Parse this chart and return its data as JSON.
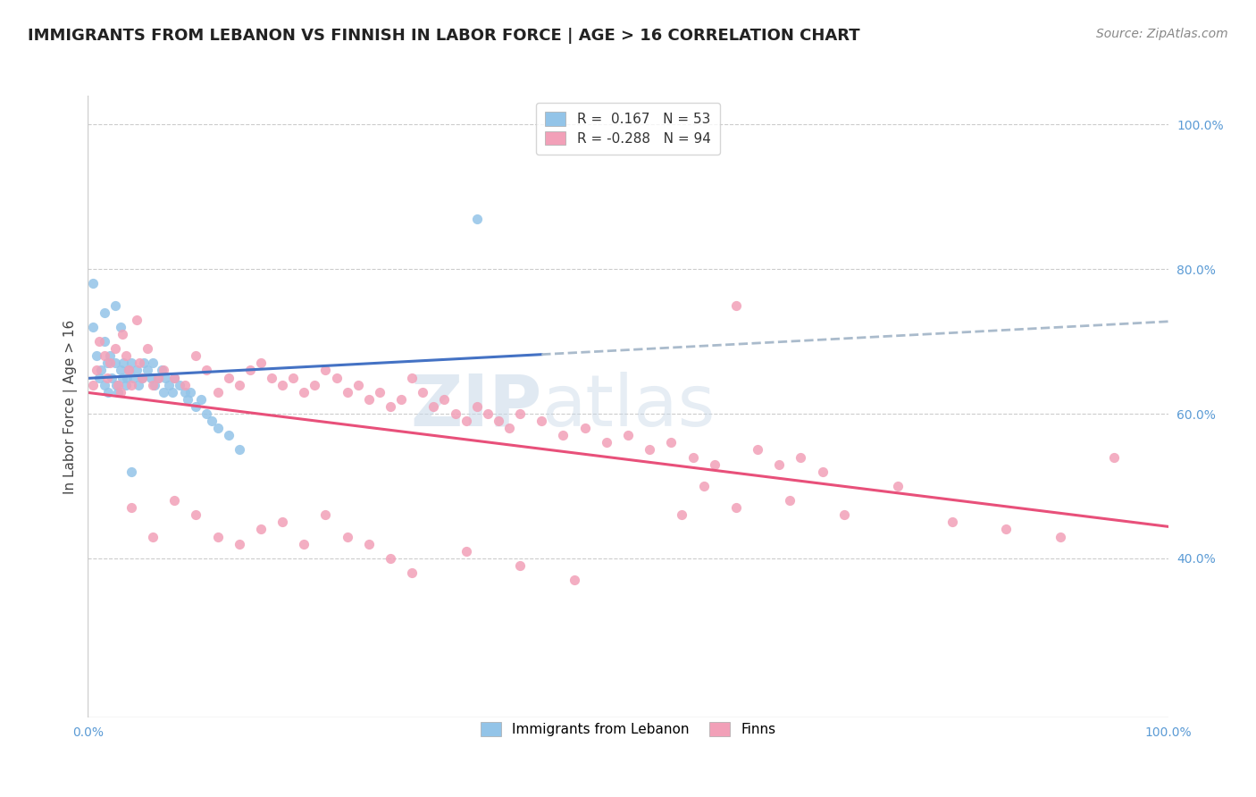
{
  "title": "IMMIGRANTS FROM LEBANON VS FINNISH IN LABOR FORCE | AGE > 16 CORRELATION CHART",
  "source": "Source: ZipAtlas.com",
  "ylabel": "In Labor Force | Age > 16",
  "xlim": [
    0.0,
    1.0
  ],
  "ylim": [
    0.18,
    1.04
  ],
  "y_ticks_right": [
    1.0,
    0.8,
    0.6,
    0.4
  ],
  "y_tick_labels_right": [
    "100.0%",
    "80.0%",
    "60.0%",
    "40.0%"
  ],
  "legend_label1": "Immigrants from Lebanon",
  "legend_label2": "Finns",
  "R_lebanon": 0.167,
  "N_lebanon": 53,
  "R_finns": -0.288,
  "N_finns": 94,
  "color_lebanon": "#93C4E8",
  "color_finns": "#F2A0B8",
  "color_line_lebanon": "#4472C4",
  "color_line_finns": "#E8507A",
  "color_dashed": "#AABBCC",
  "background_color": "#FFFFFF",
  "title_fontsize": 13,
  "source_fontsize": 10,
  "watermark_text": "ZIP​atlas",
  "lebanon_points_x": [
    0.005,
    0.008,
    0.01,
    0.012,
    0.015,
    0.015,
    0.018,
    0.019,
    0.02,
    0.022,
    0.025,
    0.026,
    0.028,
    0.03,
    0.032,
    0.033,
    0.035,
    0.036,
    0.038,
    0.04,
    0.042,
    0.045,
    0.047,
    0.05,
    0.052,
    0.055,
    0.058,
    0.06,
    0.062,
    0.065,
    0.068,
    0.07,
    0.072,
    0.075,
    0.078,
    0.08,
    0.085,
    0.09,
    0.092,
    0.095,
    0.1,
    0.105,
    0.11,
    0.115,
    0.12,
    0.13,
    0.14,
    0.015,
    0.025,
    0.03,
    0.04,
    0.36,
    0.005
  ],
  "lebanon_points_y": [
    0.72,
    0.68,
    0.65,
    0.66,
    0.7,
    0.64,
    0.67,
    0.63,
    0.68,
    0.65,
    0.67,
    0.64,
    0.63,
    0.66,
    0.65,
    0.67,
    0.64,
    0.65,
    0.66,
    0.67,
    0.65,
    0.66,
    0.64,
    0.65,
    0.67,
    0.66,
    0.65,
    0.67,
    0.64,
    0.65,
    0.66,
    0.63,
    0.65,
    0.64,
    0.63,
    0.65,
    0.64,
    0.63,
    0.62,
    0.63,
    0.61,
    0.62,
    0.6,
    0.59,
    0.58,
    0.57,
    0.55,
    0.74,
    0.75,
    0.72,
    0.52,
    0.87,
    0.78
  ],
  "finns_points_x": [
    0.005,
    0.008,
    0.01,
    0.015,
    0.018,
    0.02,
    0.025,
    0.028,
    0.03,
    0.032,
    0.035,
    0.038,
    0.04,
    0.045,
    0.048,
    0.05,
    0.055,
    0.06,
    0.065,
    0.07,
    0.08,
    0.09,
    0.1,
    0.11,
    0.12,
    0.13,
    0.14,
    0.15,
    0.16,
    0.17,
    0.18,
    0.19,
    0.2,
    0.21,
    0.22,
    0.23,
    0.24,
    0.25,
    0.26,
    0.27,
    0.28,
    0.29,
    0.3,
    0.31,
    0.32,
    0.33,
    0.34,
    0.35,
    0.36,
    0.37,
    0.38,
    0.39,
    0.4,
    0.42,
    0.44,
    0.46,
    0.48,
    0.5,
    0.52,
    0.54,
    0.56,
    0.58,
    0.6,
    0.62,
    0.64,
    0.66,
    0.68,
    0.55,
    0.57,
    0.6,
    0.65,
    0.7,
    0.75,
    0.8,
    0.85,
    0.9,
    0.95,
    0.04,
    0.06,
    0.08,
    0.1,
    0.12,
    0.14,
    0.16,
    0.18,
    0.2,
    0.22,
    0.24,
    0.26,
    0.28,
    0.3,
    0.35,
    0.4,
    0.45
  ],
  "finns_points_y": [
    0.64,
    0.66,
    0.7,
    0.68,
    0.65,
    0.67,
    0.69,
    0.64,
    0.63,
    0.71,
    0.68,
    0.66,
    0.64,
    0.73,
    0.67,
    0.65,
    0.69,
    0.64,
    0.65,
    0.66,
    0.65,
    0.64,
    0.68,
    0.66,
    0.63,
    0.65,
    0.64,
    0.66,
    0.67,
    0.65,
    0.64,
    0.65,
    0.63,
    0.64,
    0.66,
    0.65,
    0.63,
    0.64,
    0.62,
    0.63,
    0.61,
    0.62,
    0.65,
    0.63,
    0.61,
    0.62,
    0.6,
    0.59,
    0.61,
    0.6,
    0.59,
    0.58,
    0.6,
    0.59,
    0.57,
    0.58,
    0.56,
    0.57,
    0.55,
    0.56,
    0.54,
    0.53,
    0.75,
    0.55,
    0.53,
    0.54,
    0.52,
    0.46,
    0.5,
    0.47,
    0.48,
    0.46,
    0.5,
    0.45,
    0.44,
    0.43,
    0.54,
    0.47,
    0.43,
    0.48,
    0.46,
    0.43,
    0.42,
    0.44,
    0.45,
    0.42,
    0.46,
    0.43,
    0.42,
    0.4,
    0.38,
    0.41,
    0.39,
    0.37
  ]
}
